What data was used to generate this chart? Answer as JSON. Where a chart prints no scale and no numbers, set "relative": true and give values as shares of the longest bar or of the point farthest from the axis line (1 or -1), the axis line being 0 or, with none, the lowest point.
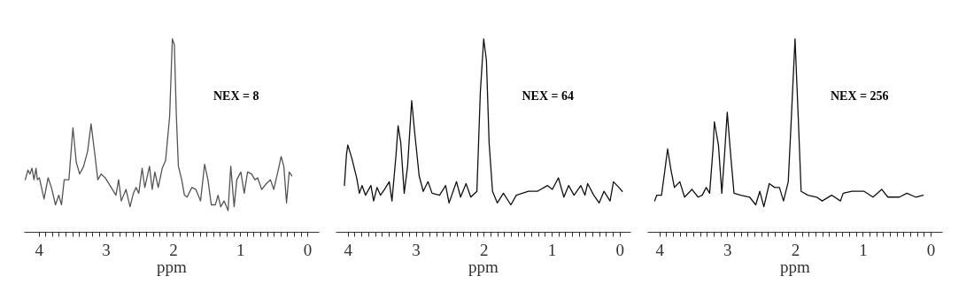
{
  "chart_data": [
    {
      "type": "line",
      "xlabel": "ppm",
      "annotations": [
        "NEX = 8"
      ],
      "relative": true,
      "tick_labels": "x",
      "xlim": [
        4.22,
        -0.17
      ],
      "xticks": [
        4,
        3,
        2,
        1,
        0,
        {
          "value": 3.9,
          "label": null
        },
        {
          "value": 3.8,
          "label": null
        },
        {
          "value": 3.7,
          "label": null
        },
        {
          "value": 3.6,
          "label": null
        },
        {
          "value": 3.5,
          "label": null
        },
        {
          "value": 3.4,
          "label": null
        },
        {
          "value": 3.3,
          "label": null
        },
        {
          "value": 3.2,
          "label": null
        },
        {
          "value": 3.1,
          "label": null
        },
        {
          "value": 2.9,
          "label": null
        },
        {
          "value": 2.8,
          "label": null
        },
        {
          "value": 2.7,
          "label": null
        },
        {
          "value": 2.6,
          "label": null
        },
        {
          "value": 2.5,
          "label": null
        },
        {
          "value": 2.4,
          "label": null
        },
        {
          "value": 2.3,
          "label": null
        },
        {
          "value": 2.2,
          "label": null
        },
        {
          "value": 2.1,
          "label": null
        },
        {
          "value": 1.9,
          "label": null
        },
        {
          "value": 1.8,
          "label": null
        },
        {
          "value": 1.7,
          "label": null
        },
        {
          "value": 1.6,
          "label": null
        },
        {
          "value": 1.5,
          "label": null
        },
        {
          "value": 1.4,
          "label": null
        },
        {
          "value": 1.3,
          "label": null
        },
        {
          "value": 1.2,
          "label": null
        },
        {
          "value": 1.1,
          "label": null
        },
        {
          "value": 0.9,
          "label": null
        },
        {
          "value": 0.8,
          "label": null
        },
        {
          "value": 0.7,
          "label": null
        },
        {
          "value": 0.6,
          "label": null
        },
        {
          "value": 0.5,
          "label": null
        },
        {
          "value": 0.4,
          "label": null
        },
        {
          "value": 0.3,
          "label": null
        },
        {
          "value": 0.2,
          "label": null
        },
        {
          "value": 0.1,
          "label": null
        }
      ],
      "x": [
        4.2,
        4.16,
        4.13,
        4.1,
        4.07,
        4.04,
        4.02,
        3.99,
        3.92,
        3.86,
        3.81,
        3.75,
        3.7,
        3.66,
        3.62,
        3.55,
        3.49,
        3.44,
        3.39,
        3.33,
        3.27,
        3.22,
        3.16,
        3.12,
        3.07,
        3.01,
        2.92,
        2.85,
        2.81,
        2.77,
        2.7,
        2.64,
        2.59,
        2.55,
        2.51,
        2.46,
        2.42,
        2.35,
        2.31,
        2.27,
        2.22,
        2.16,
        2.11,
        2.05,
        2.01,
        1.98,
        1.95,
        1.92,
        1.87,
        1.83,
        1.79,
        1.72,
        1.66,
        1.59,
        1.53,
        1.48,
        1.43,
        1.37,
        1.33,
        1.29,
        1.24,
        1.18,
        1.14,
        1.09,
        1.05,
        0.99,
        0.94,
        0.89,
        0.83,
        0.78,
        0.74,
        0.68,
        0.61,
        0.55,
        0.5,
        0.44,
        0.39,
        0.35,
        0.31,
        0.27,
        0.23
      ],
      "series": [
        {
          "color": "#555555",
          "values": [
            0.27,
            0.32,
            0.3,
            0.33,
            0.27,
            0.33,
            0.27,
            0.28,
            0.17,
            0.28,
            0.23,
            0.14,
            0.19,
            0.14,
            0.27,
            0.27,
            0.54,
            0.36,
            0.3,
            0.34,
            0.42,
            0.56,
            0.39,
            0.27,
            0.3,
            0.28,
            0.23,
            0.19,
            0.27,
            0.16,
            0.22,
            0.13,
            0.2,
            0.23,
            0.2,
            0.33,
            0.23,
            0.34,
            0.22,
            0.31,
            0.23,
            0.33,
            0.37,
            0.6,
            1,
            0.97,
            0.6,
            0.34,
            0.27,
            0.19,
            0.18,
            0.23,
            0.22,
            0.16,
            0.35,
            0.27,
            0.14,
            0.14,
            0.19,
            0.13,
            0.16,
            0.11,
            0.34,
            0.13,
            0.27,
            0.31,
            0.2,
            0.31,
            0.3,
            0.27,
            0.28,
            0.22,
            0.25,
            0.27,
            0.22,
            0.31,
            0.39,
            0.34,
            0.15,
            0.31,
            0.29
          ]
        }
      ]
    },
    {
      "type": "line",
      "xlabel": "ppm",
      "annotations": [
        "NEX = 64"
      ],
      "relative": true,
      "tick_labels": "x",
      "xlim": [
        4.18,
        -0.16
      ],
      "xticks": [
        4,
        3,
        2,
        1,
        0,
        {
          "value": 3.9,
          "label": null
        },
        {
          "value": 3.8,
          "label": null
        },
        {
          "value": 3.7,
          "label": null
        },
        {
          "value": 3.6,
          "label": null
        },
        {
          "value": 3.5,
          "label": null
        },
        {
          "value": 3.4,
          "label": null
        },
        {
          "value": 3.3,
          "label": null
        },
        {
          "value": 3.2,
          "label": null
        },
        {
          "value": 3.1,
          "label": null
        },
        {
          "value": 2.9,
          "label": null
        },
        {
          "value": 2.8,
          "label": null
        },
        {
          "value": 2.7,
          "label": null
        },
        {
          "value": 2.6,
          "label": null
        },
        {
          "value": 2.5,
          "label": null
        },
        {
          "value": 2.4,
          "label": null
        },
        {
          "value": 2.3,
          "label": null
        },
        {
          "value": 2.2,
          "label": null
        },
        {
          "value": 2.1,
          "label": null
        },
        {
          "value": 1.9,
          "label": null
        },
        {
          "value": 1.8,
          "label": null
        },
        {
          "value": 1.7,
          "label": null
        },
        {
          "value": 1.6,
          "label": null
        },
        {
          "value": 1.5,
          "label": null
        },
        {
          "value": 1.4,
          "label": null
        },
        {
          "value": 1.3,
          "label": null
        },
        {
          "value": 1.2,
          "label": null
        },
        {
          "value": 1.1,
          "label": null
        },
        {
          "value": 0.9,
          "label": null
        },
        {
          "value": 0.8,
          "label": null
        },
        {
          "value": 0.7,
          "label": null
        },
        {
          "value": 0.6,
          "label": null
        },
        {
          "value": 0.5,
          "label": null
        },
        {
          "value": 0.4,
          "label": null
        },
        {
          "value": 0.3,
          "label": null
        },
        {
          "value": 0.2,
          "label": null
        },
        {
          "value": 0.1,
          "label": null
        }
      ],
      "x": [
        4.05,
        4.02,
        4.0,
        3.94,
        3.87,
        3.83,
        3.79,
        3.74,
        3.66,
        3.62,
        3.57,
        3.52,
        3.46,
        3.39,
        3.35,
        3.29,
        3.26,
        3.22,
        3.17,
        3.12,
        3.06,
        3.02,
        2.95,
        2.89,
        2.82,
        2.76,
        2.65,
        2.56,
        2.51,
        2.4,
        2.34,
        2.26,
        2.19,
        2.1,
        2.05,
        2.0,
        1.96,
        1.92,
        1.87,
        1.8,
        1.71,
        1.6,
        1.52,
        1.34,
        1.21,
        1.06,
        0.99,
        0.9,
        0.82,
        0.75,
        0.67,
        0.57,
        0.51,
        0.47,
        0.38,
        0.3,
        0.23,
        0.14,
        0.09,
        0.01,
        -0.04
      ],
      "series": [
        {
          "color": "#111111",
          "values": [
            0.24,
            0.4,
            0.45,
            0.38,
            0.28,
            0.2,
            0.24,
            0.19,
            0.24,
            0.16,
            0.23,
            0.19,
            0.22,
            0.26,
            0.16,
            0.4,
            0.55,
            0.46,
            0.2,
            0.34,
            0.68,
            0.53,
            0.29,
            0.21,
            0.26,
            0.2,
            0.19,
            0.24,
            0.15,
            0.26,
            0.18,
            0.25,
            0.18,
            0.21,
            0.72,
            1,
            0.89,
            0.46,
            0.21,
            0.15,
            0.2,
            0.14,
            0.19,
            0.21,
            0.21,
            0.24,
            0.22,
            0.28,
            0.18,
            0.24,
            0.19,
            0.24,
            0.19,
            0.25,
            0.19,
            0.15,
            0.21,
            0.16,
            0.26,
            0.23,
            0.21
          ]
        }
      ]
    },
    {
      "type": "line",
      "xlabel": "ppm",
      "annotations": [
        "NEX = 256"
      ],
      "relative": true,
      "tick_labels": "x",
      "xlim": [
        4.18,
        -0.17
      ],
      "xticks": [
        4,
        3,
        2,
        1,
        0,
        {
          "value": 3.9,
          "label": null
        },
        {
          "value": 3.8,
          "label": null
        },
        {
          "value": 3.7,
          "label": null
        },
        {
          "value": 3.6,
          "label": null
        },
        {
          "value": 3.5,
          "label": null
        },
        {
          "value": 3.4,
          "label": null
        },
        {
          "value": 3.3,
          "label": null
        },
        {
          "value": 3.2,
          "label": null
        },
        {
          "value": 3.1,
          "label": null
        },
        {
          "value": 2.9,
          "label": null
        },
        {
          "value": 2.8,
          "label": null
        },
        {
          "value": 2.7,
          "label": null
        },
        {
          "value": 2.6,
          "label": null
        },
        {
          "value": 2.5,
          "label": null
        },
        {
          "value": 2.4,
          "label": null
        },
        {
          "value": 2.3,
          "label": null
        },
        {
          "value": 2.2,
          "label": null
        },
        {
          "value": 2.1,
          "label": null
        },
        {
          "value": 1.9,
          "label": null
        },
        {
          "value": 1.8,
          "label": null
        },
        {
          "value": 1.7,
          "label": null
        },
        {
          "value": 1.6,
          "label": null
        },
        {
          "value": 1.5,
          "label": null
        },
        {
          "value": 1.4,
          "label": null
        },
        {
          "value": 1.3,
          "label": null
        },
        {
          "value": 1.2,
          "label": null
        },
        {
          "value": 1.1,
          "label": null
        },
        {
          "value": 0.9,
          "label": null
        },
        {
          "value": 0.8,
          "label": null
        },
        {
          "value": 0.7,
          "label": null
        },
        {
          "value": 0.6,
          "label": null
        },
        {
          "value": 0.5,
          "label": null
        },
        {
          "value": 0.4,
          "label": null
        },
        {
          "value": 0.3,
          "label": null
        },
        {
          "value": 0.2,
          "label": null
        },
        {
          "value": 0.1,
          "label": null
        }
      ],
      "x": [
        4.07,
        4.04,
        3.97,
        3.92,
        3.88,
        3.83,
        3.78,
        3.7,
        3.63,
        3.52,
        3.43,
        3.37,
        3.31,
        3.26,
        3.21,
        3.19,
        3.13,
        3.08,
        3.04,
        3.0,
        2.95,
        2.9,
        2.8,
        2.67,
        2.58,
        2.52,
        2.46,
        2.38,
        2.3,
        2.23,
        2.17,
        2.1,
        2.06,
        2.0,
        1.95,
        1.91,
        1.81,
        1.68,
        1.6,
        1.46,
        1.33,
        1.29,
        1.16,
        0.98,
        0.85,
        0.72,
        0.63,
        0.46,
        0.35,
        0.22,
        0.11
      ],
      "series": [
        {
          "color": "#111111",
          "values": [
            0.16,
            0.19,
            0.19,
            0.32,
            0.43,
            0.32,
            0.23,
            0.26,
            0.18,
            0.22,
            0.18,
            0.19,
            0.23,
            0.2,
            0.43,
            0.57,
            0.45,
            0.2,
            0.4,
            0.62,
            0.4,
            0.2,
            0.19,
            0.18,
            0.14,
            0.21,
            0.13,
            0.25,
            0.23,
            0.23,
            0.16,
            0.26,
            0.55,
            1,
            0.57,
            0.21,
            0.19,
            0.18,
            0.16,
            0.19,
            0.16,
            0.2,
            0.21,
            0.21,
            0.18,
            0.22,
            0.18,
            0.18,
            0.2,
            0.18,
            0.19
          ]
        }
      ]
    }
  ]
}
